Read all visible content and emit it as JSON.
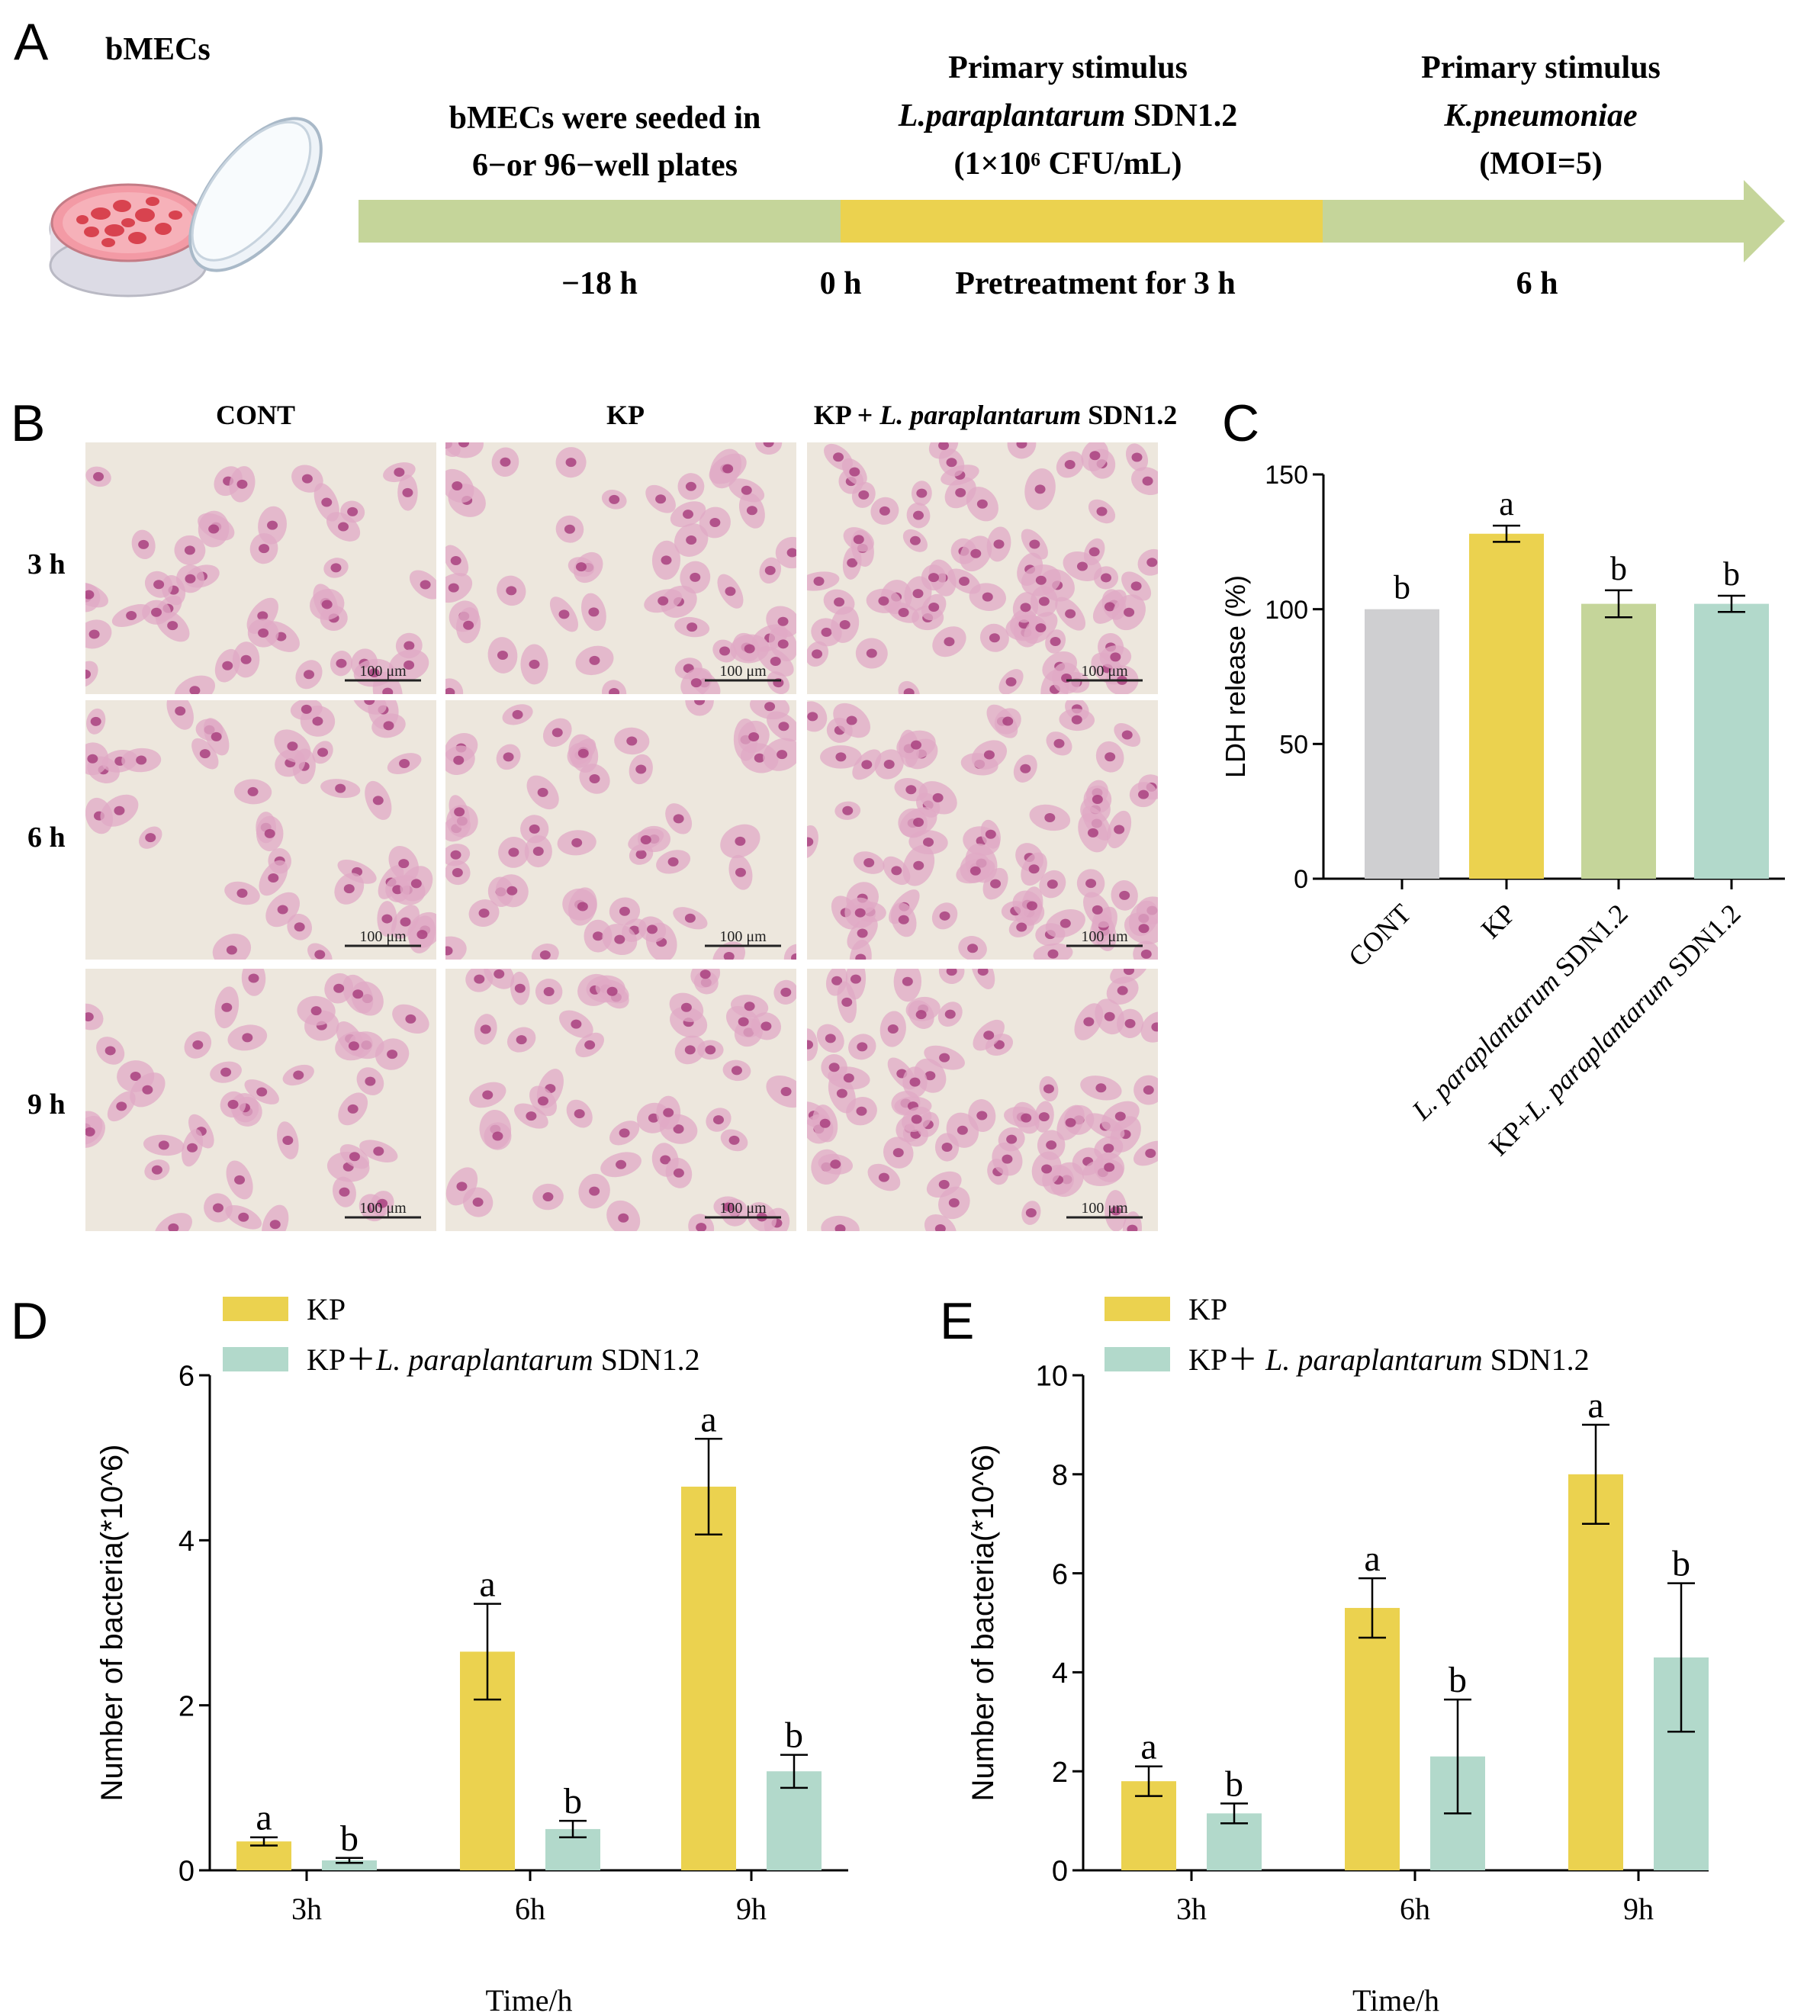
{
  "panel_letters": [
    "A",
    "B",
    "C",
    "D",
    "E"
  ],
  "panel_a": {
    "cell_label": "bMECs",
    "steps": [
      {
        "line1": "bMECs were seeded in",
        "line2": "6−or 96−well plates",
        "time": "−18 h"
      },
      {
        "line1": "Primary stimulus",
        "line2_italic": "L.paraplantarum",
        "line2_rest": " SDN1.2",
        "line3": "(1×10⁶ CFU/mL)",
        "time_start": "0 h",
        "time": "Pretreatment for 3 h"
      },
      {
        "line1": "Primary stimulus",
        "line2_italic": "K.pneumoniae",
        "line3": "(MOI=5)",
        "time": "6 h"
      }
    ],
    "colors": {
      "seed": "#c5d59a",
      "pretreat": "#ebd24f",
      "arrow": "#c5d59a"
    }
  },
  "panel_b": {
    "columns": [
      "CONT",
      "KP",
      "KP + "
    ],
    "col3_italic": "L. paraplantarum",
    "col3_rest": " SDN1.2",
    "rows": [
      "3 h",
      "6 h",
      "9 h"
    ],
    "scalebar": "100 μm"
  },
  "chart_data": [
    {
      "panel": "C",
      "type": "bar",
      "categories": [
        "CONT",
        "KP",
        "L. paraplantarum SDN1.2",
        "KP+L. paraplantarum SDN1.2"
      ],
      "category_parts": [
        {
          "pre": "",
          "it": "",
          "post": "CONT"
        },
        {
          "pre": "",
          "it": "",
          "post": "KP"
        },
        {
          "pre": "",
          "it": "L. paraplantarum",
          "post": " SDN1.2"
        },
        {
          "pre": "KP+",
          "it": "L. paraplantarum",
          "post": " SDN1.2"
        }
      ],
      "values": [
        100,
        128,
        102,
        102
      ],
      "errors": [
        0,
        3,
        5,
        3
      ],
      "letters": [
        "b",
        "a",
        "b",
        "b"
      ],
      "colors": [
        "#cfcfd1",
        "#ebd24f",
        "#c5d59a",
        "#b2d9cb"
      ],
      "ylabel": "LDH release (%)",
      "yticks": [
        0,
        50,
        100,
        150
      ],
      "ylim": [
        0,
        150
      ]
    },
    {
      "panel": "D",
      "type": "bar",
      "categories": [
        "3h",
        "6h",
        "9h"
      ],
      "series": [
        {
          "name": "KP",
          "values": [
            0.35,
            2.65,
            4.65
          ],
          "errors": [
            0.05,
            0.58,
            0.58
          ],
          "letters": [
            "a",
            "a",
            "a"
          ],
          "color": "#ebd24f"
        },
        {
          "name": "KP＋L. paraplantarum SDN1.2",
          "legend_pre": "KP＋",
          "legend_it": "L. paraplantarum",
          "legend_post": " SDN1.2",
          "values": [
            0.12,
            0.5,
            1.2
          ],
          "errors": [
            0.03,
            0.1,
            0.2
          ],
          "letters": [
            "b",
            "b",
            "b"
          ],
          "color": "#b2d9cb"
        }
      ],
      "xlabel": "Time/h",
      "ylabel": "Number of bacteria(*10^6)",
      "yticks": [
        0,
        2,
        4,
        6
      ],
      "ylim": [
        0,
        6
      ]
    },
    {
      "panel": "E",
      "type": "bar",
      "categories": [
        "3h",
        "6h",
        "9h"
      ],
      "series": [
        {
          "name": "KP",
          "values": [
            1.8,
            5.3,
            8.0
          ],
          "errors": [
            0.3,
            0.6,
            1.0
          ],
          "letters": [
            "a",
            "a",
            "a"
          ],
          "color": "#ebd24f"
        },
        {
          "name": "KP＋ L. paraplantarum SDN1.2",
          "legend_pre": "KP＋ ",
          "legend_it": "L. paraplantarum",
          "legend_post": " SDN1.2",
          "values": [
            1.15,
            2.3,
            4.3
          ],
          "errors": [
            0.2,
            1.15,
            1.5
          ],
          "letters": [
            "b",
            "b",
            "b"
          ],
          "color": "#b2d9cb"
        }
      ],
      "xlabel": "Time/h",
      "ylabel": "Number of bacteria(*10^6)",
      "yticks": [
        0,
        2,
        4,
        6,
        8,
        10
      ],
      "ylim": [
        0,
        10
      ]
    }
  ]
}
